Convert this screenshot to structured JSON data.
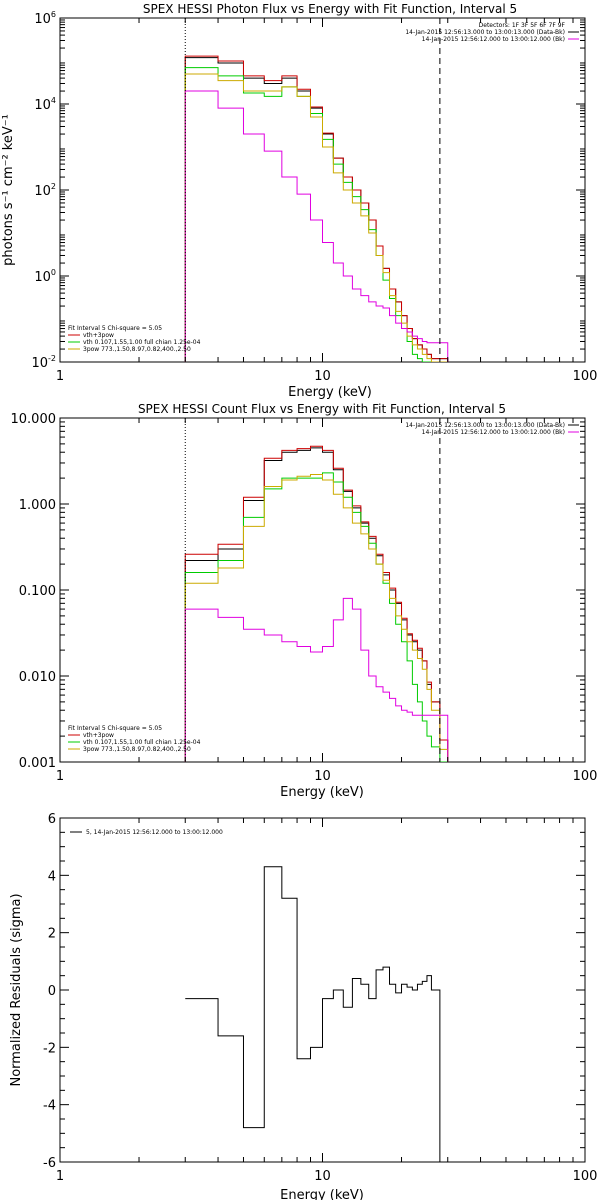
{
  "chart_data": [
    {
      "type": "line",
      "title": "SPEX HESSI Photon Flux vs Energy with Fit Function, Interval 5",
      "xlabel": "Energy (keV)",
      "ylabel": "photons s⁻¹ cm⁻² keV⁻¹",
      "xscale": "log",
      "yscale": "log",
      "xlim": [
        1,
        100
      ],
      "ylim": [
        0.01,
        1000000
      ],
      "x_tick_labels": [
        "1",
        "10",
        "100"
      ],
      "y_ticks": [
        {
          "base": "10",
          "exp": "-2"
        },
        {
          "base": "10",
          "exp": "0"
        },
        {
          "base": "10",
          "exp": "2"
        },
        {
          "base": "10",
          "exp": "4"
        },
        {
          "base": "10",
          "exp": "6"
        }
      ],
      "vlines": [
        {
          "x": 3,
          "style": "dotted"
        },
        {
          "x": 28,
          "style": "dashed"
        }
      ],
      "edges": [
        3,
        4,
        5,
        6,
        7,
        8,
        9,
        10,
        11,
        12,
        13,
        14,
        15,
        16,
        17,
        18,
        19,
        20,
        21,
        22,
        23,
        24,
        25,
        26,
        28,
        30
      ],
      "series": [
        {
          "name": "vth+3pow",
          "color": "#000000",
          "values": [
            120000,
            90000,
            40000,
            30000,
            40000,
            20000,
            8000,
            2000,
            550,
            200,
            100,
            50,
            20,
            5,
            1.5,
            0.5,
            0.25,
            0.12,
            0.06,
            0.035,
            0.025,
            0.02,
            0.015,
            0.012,
            0.012
          ]
        },
        {
          "name": "vth+3pow",
          "color": "#cc0000",
          "values": [
            130000,
            100000,
            45000,
            35000,
            45000,
            22000,
            8500,
            2100,
            550,
            200,
            100,
            50,
            20,
            5,
            1.5,
            0.5,
            0.25,
            0.12,
            0.06,
            0.035,
            0.025,
            0.02,
            0.015,
            0.012,
            0.012
          ]
        },
        {
          "name": "vth 0.107,1.55,1.00 full chian 1.25e-04",
          "color": "#00cc00",
          "values": [
            70000,
            45000,
            18000,
            15000,
            25000,
            15000,
            6000,
            1500,
            400,
            150,
            70,
            35,
            12,
            3,
            0.8,
            0.3,
            0.12,
            0.06,
            0.03,
            0.015,
            0.012,
            0.01,
            0.01,
            0.01,
            0.01
          ]
        },
        {
          "name": "3pow 773.,1.50,8.97,0.82,400.,2.50",
          "color": "#ccaa00",
          "values": [
            50000,
            35000,
            20000,
            20000,
            25000,
            15000,
            5000,
            1000,
            250,
            100,
            50,
            25,
            10,
            3,
            1.2,
            0.35,
            0.15,
            0.08,
            0.04,
            0.025,
            0.02,
            0.015,
            0.012,
            0.01,
            0.01
          ]
        },
        {
          "name": "14-Jan-2015 12:56:12.000 to 13:00:12.000 (Bk)",
          "color": "#e000e0",
          "values": [
            20000,
            8000,
            2000,
            800,
            200,
            80,
            20,
            6,
            2,
            1,
            0.5,
            0.35,
            0.25,
            0.2,
            0.18,
            0.12,
            0.08,
            0.06,
            0.05,
            0.04,
            0.035,
            0.03,
            0.028,
            0.028,
            0.028
          ]
        }
      ],
      "legend": {
        "top_right": [
          "Detectors: 1F 3F 5F 6F 7F 9F",
          "14-Jan-2015 12:56:13.000 to 13:00:13.000 (Data-Bk)",
          "14-Jan-2015 12:56:12.000 to 13:00:12.000 (Bk)"
        ],
        "bottom_left": [
          "Fit Interval 5    Chi-square = 5.05",
          "vth+3pow",
          "vth 0.107,1.55,1.00  full chian 1.25e-04",
          "3pow 773.,1.50,8.97,0.82,400.,2.50"
        ]
      }
    },
    {
      "type": "line",
      "title": "SPEX HESSI Count Flux vs Energy with Fit Function, Interval 5",
      "xlabel": "Energy (keV)",
      "ylabel": "",
      "xscale": "log",
      "yscale": "log",
      "xlim": [
        1,
        100
      ],
      "ylim": [
        0.001,
        10
      ],
      "x_tick_labels": [
        "1",
        "10",
        "100"
      ],
      "y_tick_labels": [
        "0.001",
        "0.010",
        "0.100",
        "1.000",
        "10.000"
      ],
      "vlines": [
        {
          "x": 3,
          "style": "dotted"
        },
        {
          "x": 28,
          "style": "dashed"
        }
      ],
      "edges": [
        3,
        4,
        5,
        6,
        7,
        8,
        9,
        10,
        11,
        12,
        13,
        14,
        15,
        16,
        17,
        18,
        19,
        20,
        21,
        22,
        23,
        24,
        25,
        26,
        28,
        30
      ],
      "series": [
        {
          "name": "vth+3pow",
          "color": "#000000",
          "values": [
            0.22,
            0.3,
            1.1,
            3.2,
            4.0,
            4.2,
            4.5,
            4.0,
            2.5,
            1.4,
            0.9,
            0.6,
            0.4,
            0.25,
            0.15,
            0.1,
            0.07,
            0.045,
            0.03,
            0.025,
            0.02,
            0.015,
            0.008,
            0.005,
            0.0018
          ]
        },
        {
          "name": "vth+3pow",
          "color": "#cc0000",
          "values": [
            0.26,
            0.34,
            1.2,
            3.4,
            4.2,
            4.4,
            4.7,
            4.2,
            2.6,
            1.45,
            0.95,
            0.62,
            0.42,
            0.26,
            0.16,
            0.105,
            0.072,
            0.047,
            0.031,
            0.026,
            0.021,
            0.015,
            0.0085,
            0.005,
            0.0018
          ]
        },
        {
          "name": "vth 0.107,1.55,1.00 full chian 1.25e-04",
          "color": "#00cc00",
          "values": [
            0.16,
            0.22,
            0.7,
            1.5,
            2.0,
            2.0,
            2.0,
            2.3,
            1.8,
            1.2,
            0.8,
            0.55,
            0.35,
            0.2,
            0.12,
            0.07,
            0.04,
            0.025,
            0.015,
            0.008,
            0.005,
            0.003,
            0.002,
            0.0015,
            0.001
          ]
        },
        {
          "name": "3pow 773.,1.50,8.97,0.82,400.,2.50",
          "color": "#ccaa00",
          "values": [
            0.12,
            0.18,
            0.55,
            1.6,
            1.9,
            2.1,
            2.2,
            1.9,
            1.3,
            0.9,
            0.6,
            0.45,
            0.3,
            0.2,
            0.13,
            0.08,
            0.05,
            0.035,
            0.025,
            0.02,
            0.016,
            0.012,
            0.007,
            0.004,
            0.0014
          ]
        },
        {
          "name": "14-Jan-2015 12:56:12.000 to 13:00:12.000 (Bk)",
          "color": "#e000e0",
          "values": [
            0.06,
            0.048,
            0.035,
            0.03,
            0.025,
            0.022,
            0.019,
            0.022,
            0.045,
            0.08,
            0.06,
            0.02,
            0.01,
            0.0075,
            0.0065,
            0.0055,
            0.0045,
            0.004,
            0.0038,
            0.0035,
            0.0035,
            0.0035,
            0.0035,
            0.0035,
            0.0035
          ]
        }
      ],
      "legend": {
        "top_right": [
          "14-Jan-2015 12:56:13.000 to 13:00:13.000 (Data-Bk)",
          "14-Jan-2015 12:56:12.000 to 13:00:12.000 (Bk)"
        ],
        "bottom_left": [
          "Fit Interval 5    Chi-square = 5.05",
          "vth+3pow",
          "vth 0.107,1.55,1.00  full chian 1.25e-04",
          "3pow 773.,1.50,8.97,0.82,400.,2.50"
        ]
      }
    },
    {
      "type": "line",
      "title": "",
      "xlabel": "Energy (keV)",
      "ylabel": "Normalized Residuals (sigma)",
      "xscale": "log",
      "yscale": "linear",
      "xlim": [
        1,
        100
      ],
      "ylim": [
        -6,
        6
      ],
      "x_tick_labels": [
        "1",
        "10",
        "100"
      ],
      "y_tick_labels": [
        "-6",
        "-4",
        "-2",
        "0",
        "2",
        "4",
        "6"
      ],
      "edges": [
        3,
        4,
        5,
        6,
        7,
        8,
        9,
        10,
        11,
        12,
        13,
        14,
        15,
        16,
        17,
        18,
        19,
        20,
        21,
        22,
        23,
        24,
        25,
        26,
        28
      ],
      "series": [
        {
          "name": "5, 14-Jan-2015 12:56:12.000 to 13:00:12.000",
          "color": "#000000",
          "values": [
            -0.3,
            -1.6,
            -4.8,
            4.3,
            3.2,
            -2.4,
            -2.0,
            -0.3,
            0.0,
            -0.6,
            0.4,
            0.2,
            -0.3,
            0.7,
            0.8,
            0.2,
            -0.1,
            0.2,
            0.1,
            0.0,
            0.2,
            0.3,
            0.5,
            0.0
          ]
        }
      ],
      "legend": {
        "top_left": [
          "5, 14-Jan-2015 12:56:12.000 to 13:00:12.000"
        ]
      }
    }
  ]
}
